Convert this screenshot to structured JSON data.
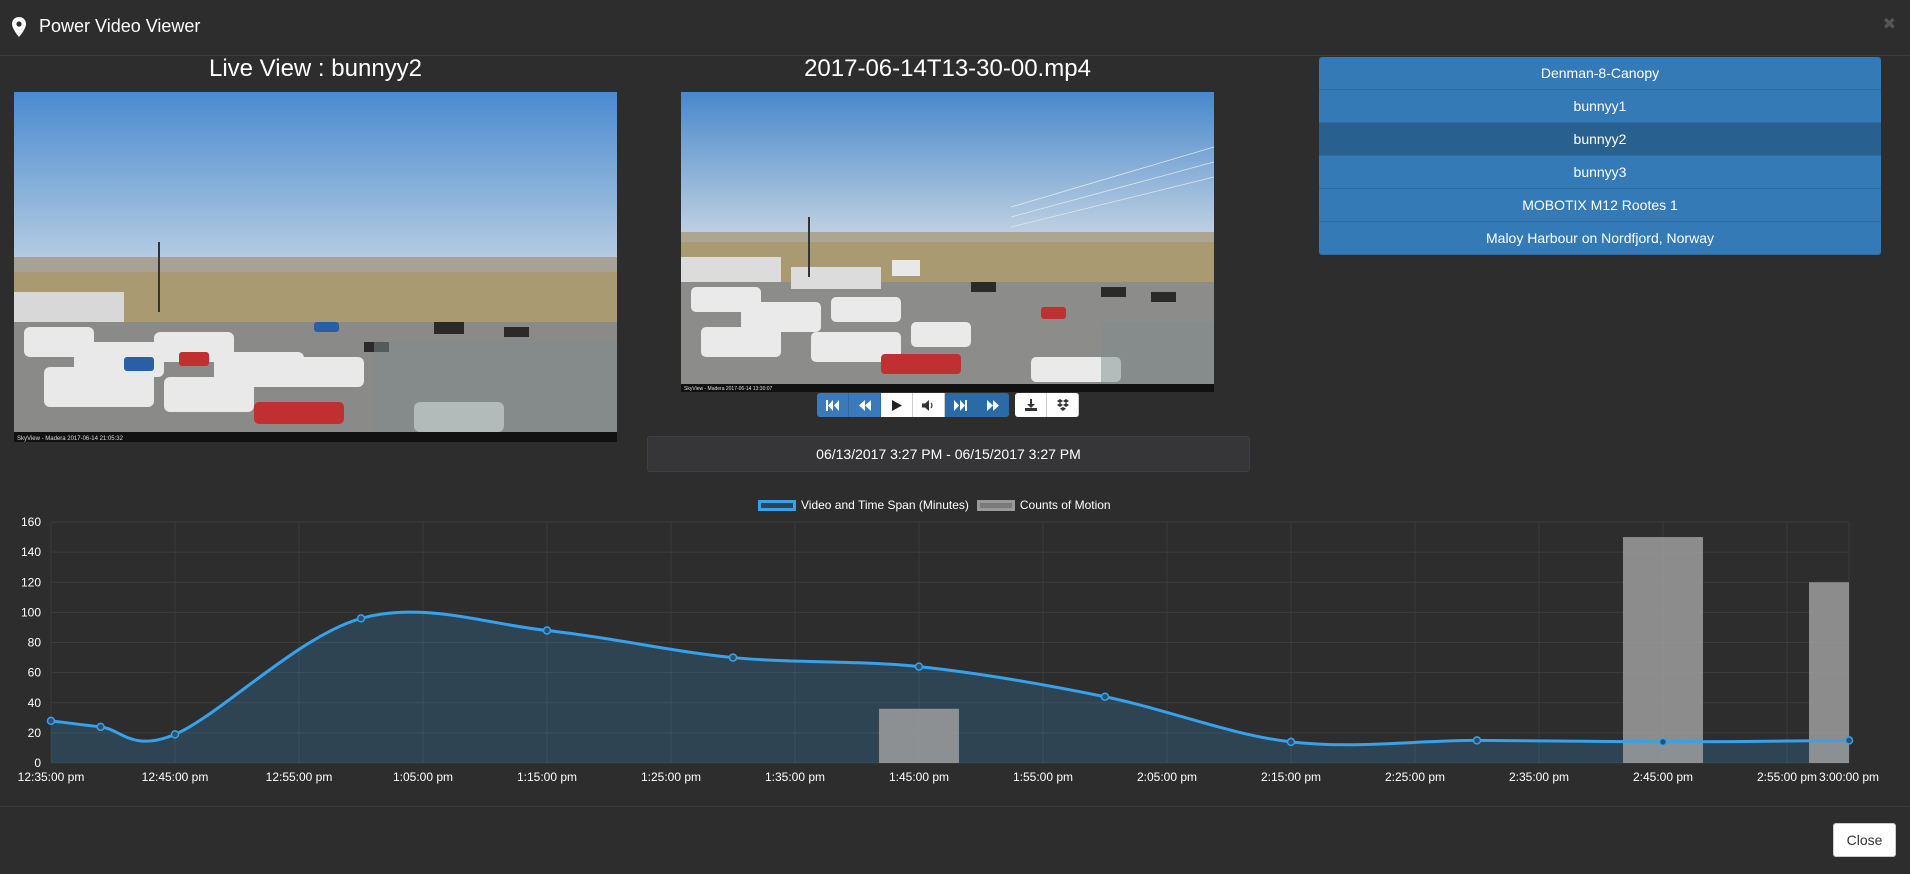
{
  "header": {
    "title": "Power Video Viewer"
  },
  "live": {
    "title": "Live View : bunnyy2",
    "caption": "SkyView - Madera 2017-06-14 21:05:32"
  },
  "playback": {
    "title": "2017-06-14T13-30-00.mp4",
    "caption": "SkyView - Madera 2017-06-14 13:30:07"
  },
  "date_range": "06/13/2017 3:27 PM - 06/15/2017 3:27 PM",
  "cameras": [
    {
      "label": "Denman-8-Canopy",
      "active": false
    },
    {
      "label": "bunnyy1",
      "active": false
    },
    {
      "label": "bunnyy2",
      "active": true
    },
    {
      "label": "bunnyy3",
      "active": false
    },
    {
      "label": "MOBOTIX M12 Rootes 1",
      "active": false
    },
    {
      "label": "Maloy Harbour on Nordfjord, Norway",
      "active": false
    }
  ],
  "player_buttons": [
    "skip-back-icon",
    "rewind-icon",
    "play-icon",
    "volume-icon",
    "skip-forward-icon",
    "fast-forward-icon"
  ],
  "footer": {
    "close_label": "Close"
  },
  "colors": {
    "line": "#36a2eb",
    "bar": "#9e9e9e",
    "active_camera": "#286090",
    "camera": "#337ab7"
  },
  "chart_data": {
    "type": "line",
    "legend": [
      "Video and Time Span (Minutes)",
      "Counts of Motion"
    ],
    "legend_position": "top",
    "grid": true,
    "ylim": [
      0,
      160
    ],
    "y_ticks": [
      "0",
      "20",
      "40",
      "60",
      "80",
      "100",
      "120",
      "140",
      "160"
    ],
    "x_ticks": [
      "12:35:00 pm",
      "12:45:00 pm",
      "12:55:00 pm",
      "1:05:00 pm",
      "1:15:00 pm",
      "1:25:00 pm",
      "1:35:00 pm",
      "1:45:00 pm",
      "1:55:00 pm",
      "2:05:00 pm",
      "2:15:00 pm",
      "2:25:00 pm",
      "2:35:00 pm",
      "2:45:00 pm",
      "2:55:00 pm",
      "3:00:00 pm"
    ],
    "series": [
      {
        "name": "Video and Time Span (Minutes)",
        "type": "line",
        "points": [
          [
            "12:35:00 pm",
            28
          ],
          [
            "12:39:00 pm",
            24
          ],
          [
            "12:45:00 pm",
            19
          ],
          [
            "1:00:00 pm",
            96
          ],
          [
            "1:15:00 pm",
            88
          ],
          [
            "1:30:00 pm",
            70
          ],
          [
            "1:45:00 pm",
            64
          ],
          [
            "2:00:00 pm",
            44
          ],
          [
            "2:15:00 pm",
            14
          ],
          [
            "2:30:00 pm",
            15
          ],
          [
            "2:45:00 pm",
            14
          ],
          [
            "3:00:00 pm",
            15
          ]
        ]
      },
      {
        "name": "Counts of Motion",
        "type": "bar",
        "points": [
          [
            "1:45:00 pm",
            36
          ],
          [
            "2:45:00 pm",
            150
          ],
          [
            "3:00:00 pm",
            120
          ]
        ]
      }
    ]
  }
}
